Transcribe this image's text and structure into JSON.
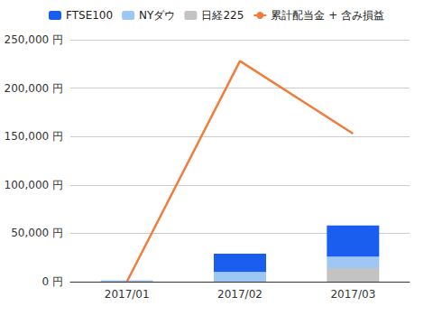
{
  "chart_data": {
    "type": "bar",
    "categories": [
      "2017/01",
      "2017/02",
      "2017/03"
    ],
    "series": [
      {
        "name": "FTSE100",
        "type": "bar",
        "color": "#1a5ef0",
        "values": [
          0,
          19000,
          32000
        ]
      },
      {
        "name": "NYダウ",
        "type": "bar",
        "color": "#9ec8f3",
        "values": [
          1500,
          10000,
          12000
        ]
      },
      {
        "name": "日経225",
        "type": "bar",
        "color": "#c3c3c3",
        "values": [
          0,
          0,
          14000
        ]
      },
      {
        "name": "累計配当金 + 含み損益",
        "type": "line",
        "color": "#f07d3c",
        "values": [
          0,
          228000,
          153000
        ]
      }
    ],
    "ylim": [
      0,
      250000
    ],
    "yticks": [
      {
        "value": 0,
        "label": "0 円"
      },
      {
        "value": 50000,
        "label": "50,000 円"
      },
      {
        "value": 100000,
        "label": "100,000 円"
      },
      {
        "value": 150000,
        "label": "150,000 円"
      },
      {
        "value": 200000,
        "label": "200,000 円"
      },
      {
        "value": 250000,
        "label": "250,000 円"
      }
    ],
    "stacked": true,
    "grid": true,
    "legend": "top"
  }
}
